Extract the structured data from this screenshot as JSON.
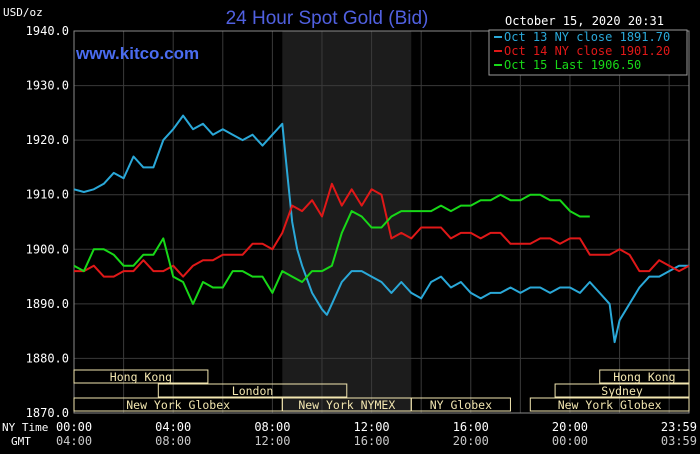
{
  "title": "24 Hour Spot Gold (Bid)",
  "unit": "USD/oz",
  "datetime": "October 15, 2020 20:31",
  "watermark": "www.kitco.com",
  "row_labels": {
    "ny": "NY Time",
    "gmt": "GMT"
  },
  "colors": {
    "background": "#000000",
    "grid": "#3a3a3a",
    "axis_text": "#ffffff",
    "title": "#5060e0",
    "watermark": "#4a6cf0",
    "session_fill": "#f2e6b0",
    "night": "#1c1c1c",
    "s1": "#2aa8d8",
    "s2": "#e01818",
    "s3": "#18d818"
  },
  "sessions": [
    {
      "label": "Hong Kong",
      "row": 0,
      "start": 0.0,
      "end": 6.75
    },
    {
      "label": "London",
      "row": 1,
      "start": 4.25,
      "end": 13.75
    },
    {
      "label": "New York Globex",
      "row": 2,
      "start": 0.0,
      "end": 10.5
    },
    {
      "label": "New York NYMEX",
      "row": 2,
      "start": 10.5,
      "end": 17.0
    },
    {
      "label": "NY Globex",
      "row": 2,
      "start": 17.0,
      "end": 22.0
    },
    {
      "label": "Hong Kong",
      "row": 0,
      "start": 26.5,
      "end": 31.0
    },
    {
      "label": "Sydney",
      "row": 1,
      "start": 24.25,
      "end": 31.0
    },
    {
      "label": "New York Globex",
      "row": 2,
      "start": 23.0,
      "end": 31.0
    }
  ],
  "chart_data": {
    "type": "line",
    "title": "24 Hour Spot Gold (Bid)",
    "ylabel": "USD/oz",
    "ylim": [
      1870,
      1940
    ],
    "xlim": [
      0,
      31
    ],
    "grid": true,
    "legend_position": "top-right",
    "yticks": [
      "1940.0",
      "1930.0",
      "1920.0",
      "1910.0",
      "1900.0",
      "1890.0",
      "1880.0",
      "1870.0"
    ],
    "xticks": [
      {
        "pos": 0,
        "ny": "00:00",
        "gmt": "04:00"
      },
      {
        "pos": 5,
        "ny": "04:00",
        "gmt": "08:00"
      },
      {
        "pos": 10,
        "ny": "08:00",
        "gmt": "12:00"
      },
      {
        "pos": 15,
        "ny": "12:00",
        "gmt": "16:00"
      },
      {
        "pos": 20,
        "ny": "16:00",
        "gmt": "20:00"
      },
      {
        "pos": 25,
        "ny": "20:00",
        "gmt": "00:00"
      },
      {
        "pos": 31,
        "ny": "23:59",
        "gmt": "03:59"
      }
    ],
    "shaded_range": [
      10.5,
      17.0
    ],
    "series": [
      {
        "name": "Oct 13 NY close 1891.70",
        "color": "#2aa8d8",
        "x": [
          0,
          0.5,
          1,
          1.5,
          2,
          2.5,
          3,
          3.5,
          4,
          4.5,
          5,
          5.5,
          6,
          6.5,
          7,
          7.5,
          8,
          8.5,
          9,
          9.5,
          10,
          10.5,
          10.8,
          11,
          11.25,
          11.5,
          12,
          12.5,
          12.75,
          13,
          13.5,
          14,
          14.5,
          15,
          15.5,
          16,
          16.5,
          17,
          17.5,
          18,
          18.5,
          19,
          19.5,
          20,
          20.5,
          21,
          21.5,
          22,
          22.5,
          23,
          23.5,
          24,
          24.5,
          25,
          25.5,
          26,
          26.5,
          27,
          27.25,
          27.5,
          28,
          28.5,
          29,
          29.5,
          30,
          30.5,
          31
        ],
        "y": [
          1911,
          1910.5,
          1911,
          1912,
          1914,
          1913,
          1917,
          1915,
          1915,
          1920,
          1922,
          1924.5,
          1922,
          1923,
          1921,
          1922,
          1921,
          1920,
          1921,
          1919,
          1921,
          1923,
          1912,
          1905,
          1900,
          1897,
          1892,
          1889,
          1888,
          1890,
          1894,
          1896,
          1896,
          1895,
          1894,
          1892,
          1894,
          1892,
          1891,
          1894,
          1895,
          1893,
          1894,
          1892,
          1891,
          1892,
          1892,
          1893,
          1892,
          1893,
          1893,
          1892,
          1893,
          1893,
          1892,
          1894,
          1892,
          1890,
          1883,
          1887,
          1890,
          1893,
          1895,
          1895,
          1896,
          1897,
          1897
        ]
      },
      {
        "name": "Oct 14 NY close 1901.20",
        "color": "#e01818",
        "x": [
          0,
          0.5,
          1,
          1.5,
          2,
          2.5,
          3,
          3.5,
          4,
          4.5,
          5,
          5.5,
          6,
          6.5,
          7,
          7.5,
          8,
          8.5,
          9,
          9.5,
          10,
          10.5,
          11,
          11.5,
          12,
          12.5,
          13,
          13.5,
          14,
          14.5,
          15,
          15.5,
          16,
          16.5,
          17,
          17.5,
          18,
          18.5,
          19,
          19.5,
          20,
          20.5,
          21,
          21.5,
          22,
          22.5,
          23,
          23.5,
          24,
          24.5,
          25,
          25.5,
          26,
          26.5,
          27,
          27.5,
          28,
          28.5,
          29,
          29.5,
          30,
          30.5,
          31
        ],
        "y": [
          1896,
          1896,
          1897,
          1895,
          1895,
          1896,
          1896,
          1898,
          1896,
          1896,
          1897,
          1895,
          1897,
          1898,
          1898,
          1899,
          1899,
          1899,
          1901,
          1901,
          1900,
          1903,
          1908,
          1907,
          1909,
          1906,
          1912,
          1908,
          1911,
          1908,
          1911,
          1910,
          1902,
          1903,
          1902,
          1904,
          1904,
          1904,
          1902,
          1903,
          1903,
          1902,
          1903,
          1903,
          1901,
          1901,
          1901,
          1902,
          1902,
          1901,
          1902,
          1902,
          1899,
          1899,
          1899,
          1900,
          1899,
          1896,
          1896,
          1898,
          1897,
          1896,
          1897
        ]
      },
      {
        "name": "Oct 15 Last 1906.50",
        "color": "#18d818",
        "x": [
          0,
          0.5,
          1,
          1.5,
          2,
          2.5,
          3,
          3.5,
          4,
          4.5,
          5,
          5.5,
          6,
          6.5,
          7,
          7.5,
          8,
          8.5,
          9,
          9.5,
          10,
          10.5,
          11,
          11.5,
          12,
          12.5,
          13,
          13.5,
          14,
          14.5,
          15,
          15.5,
          16,
          16.5,
          17,
          17.5,
          18,
          18.5,
          19,
          19.5,
          20,
          20.5,
          21,
          21.5,
          22,
          22.5,
          23,
          23.5,
          24,
          24.5,
          25,
          25.5,
          26
        ],
        "y": [
          1897,
          1896,
          1900,
          1900,
          1899,
          1897,
          1897,
          1899,
          1899,
          1902,
          1895,
          1894,
          1890,
          1894,
          1893,
          1893,
          1896,
          1896,
          1895,
          1895,
          1892,
          1896,
          1895,
          1894,
          1896,
          1896,
          1897,
          1903,
          1907,
          1906,
          1904,
          1904,
          1906,
          1907,
          1907,
          1907,
          1907,
          1908,
          1907,
          1908,
          1908,
          1909,
          1909,
          1910,
          1909,
          1909,
          1910,
          1910,
          1909,
          1909,
          1907,
          1906,
          1906
        ]
      }
    ]
  }
}
